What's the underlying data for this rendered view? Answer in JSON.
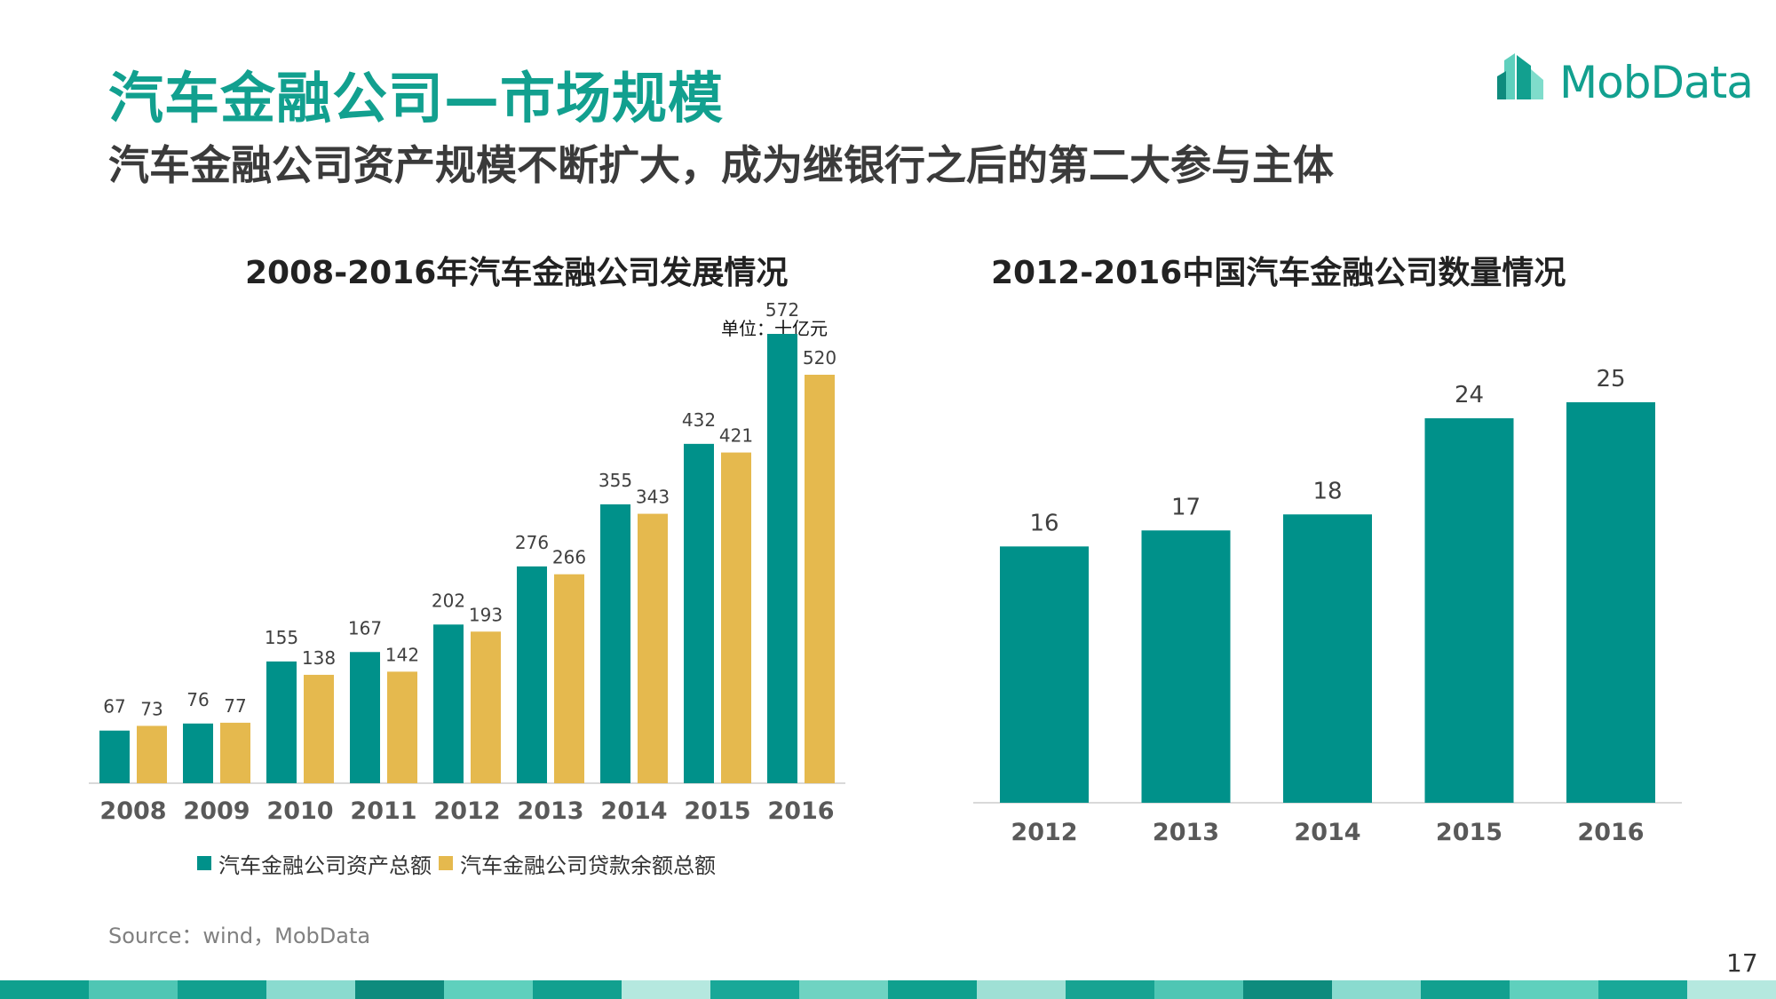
{
  "header": {
    "title": "汽车金融公司—市场规模",
    "subtitle": "汽车金融公司资产规模不断扩大，成为继银行之后的第二大参与主体",
    "logo_text": "MobData"
  },
  "colors": {
    "teal": "#00918a",
    "gold": "#e5b94e",
    "title_green": "#12a08f"
  },
  "chart_data": [
    {
      "type": "bar",
      "title": "2008-2016年汽车金融公司发展情况",
      "unit_note": "单位：十亿元",
      "categories": [
        "2008",
        "2009",
        "2010",
        "2011",
        "2012",
        "2013",
        "2014",
        "2015",
        "2016"
      ],
      "series": [
        {
          "name": "汽车金融公司资产总额",
          "color": "#00918a",
          "values": [
            67,
            76,
            155,
            167,
            202,
            276,
            355,
            432,
            572
          ]
        },
        {
          "name": "汽车金融公司贷款余额总额",
          "color": "#e5b94e",
          "values": [
            73,
            77,
            138,
            142,
            193,
            266,
            343,
            421,
            520
          ]
        }
      ],
      "ylim": [
        0,
        572
      ],
      "legend": "bottom",
      "grid": false
    },
    {
      "type": "bar",
      "title": "2012-2016中国汽车金融公司数量情况",
      "categories": [
        "2012",
        "2013",
        "2014",
        "2015",
        "2016"
      ],
      "values": [
        16,
        17,
        18,
        24,
        25
      ],
      "color": "#00918a",
      "ylim": [
        0,
        25
      ],
      "grid": false
    }
  ],
  "footer": {
    "source": "Source：wind，MobData",
    "page_number": "17"
  }
}
